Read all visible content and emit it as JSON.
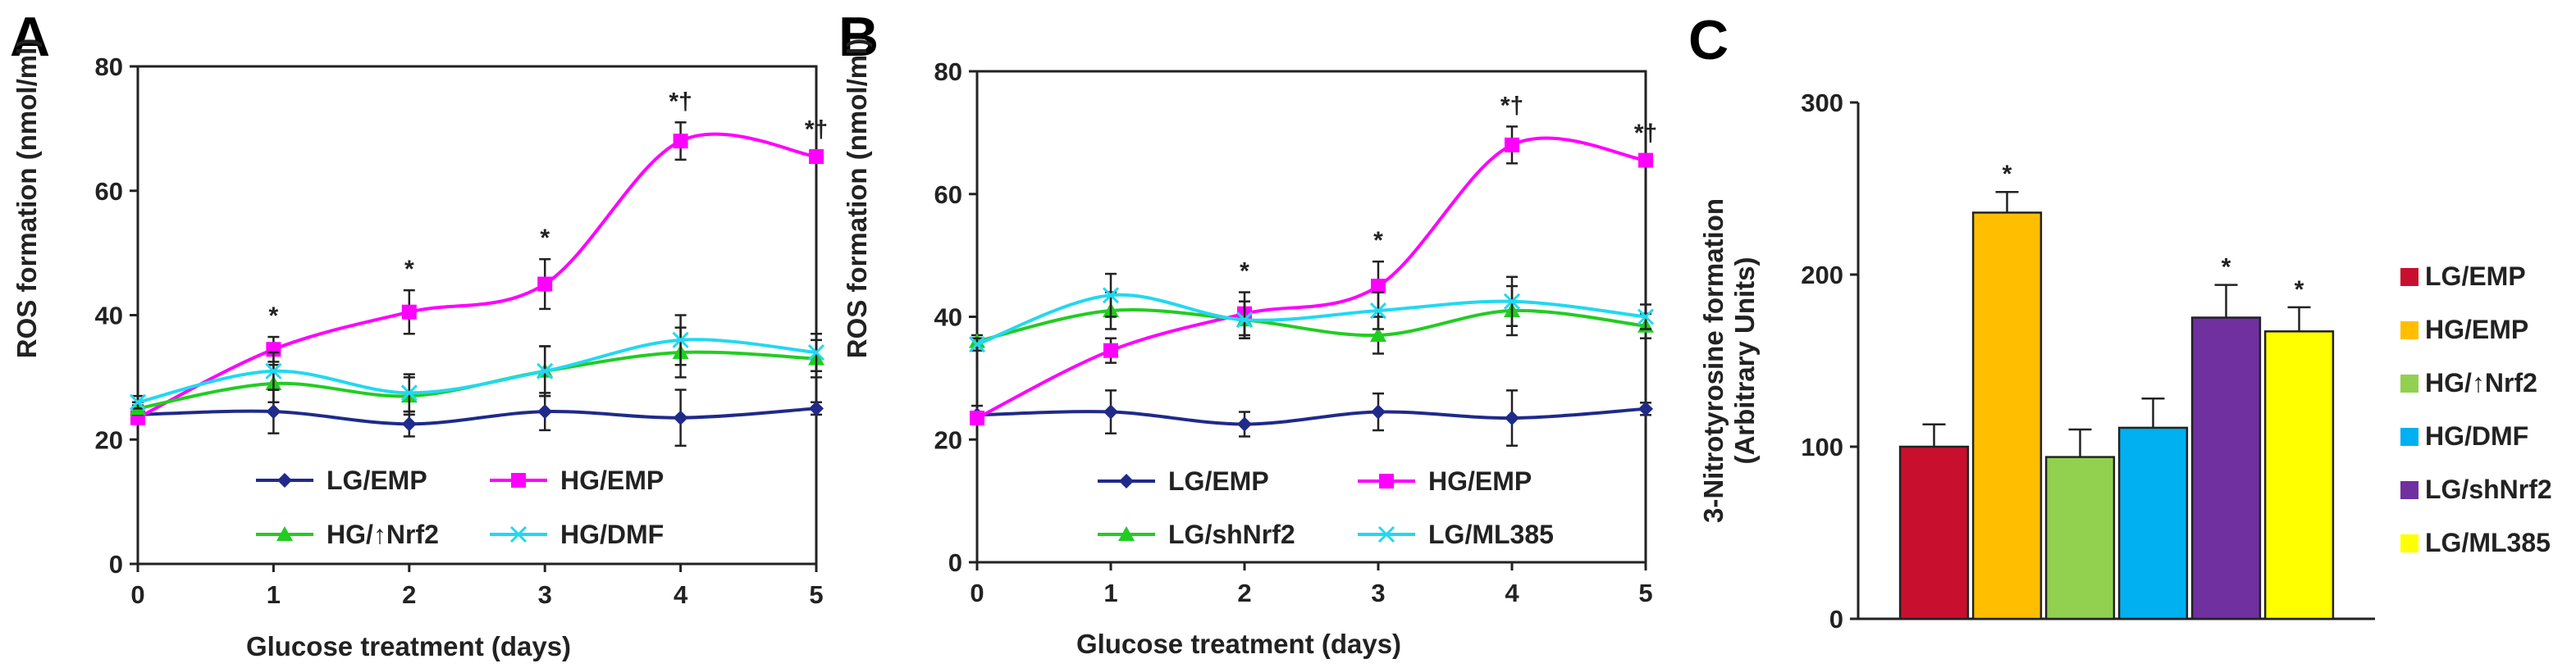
{
  "panels": [
    {
      "id": "A",
      "letter": "A"
    },
    {
      "id": "B",
      "letter": "B"
    },
    {
      "id": "C",
      "letter": "C"
    }
  ],
  "chart_data": [
    {
      "id": "A",
      "type": "line",
      "xlabel": "Glucose treatment (days)",
      "ylabel": "ROS formation (nmol/ml)",
      "x": [
        0,
        1,
        2,
        3,
        4,
        5
      ],
      "xticks": [
        "0",
        "1",
        "2",
        "3",
        "4",
        "5"
      ],
      "yticks": [
        "0",
        "20",
        "40",
        "60",
        "80"
      ],
      "xlim": [
        0,
        5
      ],
      "ylim": [
        0,
        80
      ],
      "legend_position": "bottom",
      "series": [
        {
          "name": "LG/EMP",
          "color": "#1f2a8a",
          "marker": "diamond",
          "values": [
            24,
            24.5,
            22.5,
            24.5,
            23.5,
            25
          ],
          "errors": [
            1.5,
            3.5,
            2,
            3,
            4.5,
            1
          ]
        },
        {
          "name": "HG/EMP",
          "color": "#ff00ff",
          "marker": "square",
          "values": [
            23.5,
            34.5,
            40.5,
            45,
            68,
            65.5
          ],
          "errors": [
            1,
            2,
            3.5,
            4,
            3,
            1
          ]
        },
        {
          "name": "HG/↑Nrf2",
          "color": "#22cc22",
          "marker": "triangle",
          "values": [
            25,
            29,
            27,
            31,
            34,
            33
          ],
          "errors": [
            1,
            3,
            3,
            4,
            4,
            3
          ]
        },
        {
          "name": "HG/DMF",
          "color": "#22d8f0",
          "marker": "x",
          "values": [
            26,
            31,
            27.5,
            31,
            36,
            34
          ],
          "errors": [
            1,
            3,
            3,
            4,
            4,
            3
          ]
        }
      ],
      "annotations": [
        {
          "x": 1,
          "text": "*"
        },
        {
          "x": 2,
          "text": "*"
        },
        {
          "x": 3,
          "text": "*"
        },
        {
          "x": 4,
          "text": "*†"
        },
        {
          "x": 5,
          "text": "*†"
        }
      ]
    },
    {
      "id": "B",
      "type": "line",
      "xlabel": "Glucose treatment (days)",
      "ylabel": "ROS formation (nmol/ml)",
      "x": [
        0,
        1,
        2,
        3,
        4,
        5
      ],
      "xticks": [
        "0",
        "1",
        "2",
        "3",
        "4",
        "5"
      ],
      "yticks": [
        "0",
        "20",
        "40",
        "60",
        "80"
      ],
      "xlim": [
        0,
        5
      ],
      "ylim": [
        0,
        80
      ],
      "legend_position": "bottom",
      "series": [
        {
          "name": "LG/EMP",
          "color": "#1f2a8a",
          "marker": "diamond",
          "values": [
            24,
            24.5,
            22.5,
            24.5,
            23.5,
            25
          ],
          "errors": [
            1.5,
            3.5,
            2,
            3,
            4.5,
            1
          ]
        },
        {
          "name": "HG/EMP",
          "color": "#ff00ff",
          "marker": "square",
          "values": [
            23.5,
            34.5,
            40.5,
            45,
            68,
            65.5
          ],
          "errors": [
            1,
            2,
            3.5,
            4,
            3,
            1
          ]
        },
        {
          "name": "LG/shNrf2",
          "color": "#22cc22",
          "marker": "triangle",
          "values": [
            36,
            41,
            39.5,
            37,
            41,
            38.5
          ],
          "errors": [
            1,
            3,
            3,
            3,
            4,
            2
          ]
        },
        {
          "name": "LG/ML385",
          "color": "#22d8f0",
          "marker": "x",
          "values": [
            35.5,
            43.5,
            39.5,
            41,
            42.5,
            40
          ],
          "errors": [
            1,
            3.5,
            3,
            3,
            4,
            2
          ]
        }
      ],
      "annotations": [
        {
          "x": 2,
          "text": "*"
        },
        {
          "x": 3,
          "text": "*"
        },
        {
          "x": 4,
          "text": "*†"
        },
        {
          "x": 5,
          "text": "*†"
        }
      ]
    },
    {
      "id": "C",
      "type": "bar",
      "ylabel": "3-Nitrotyrosine formation",
      "ylabel2": "(Arbitrary Units)",
      "categories": [
        "LG/EMP",
        "HG/EMP",
        "HG/↑Nrf2",
        "HG/DMF",
        "LG/shNrf2",
        "LG/ML385"
      ],
      "values": [
        100,
        236,
        94,
        111,
        175,
        167
      ],
      "errors": [
        13,
        12,
        16,
        17,
        19,
        14
      ],
      "colors": [
        "#c8102e",
        "#ffbf00",
        "#92d050",
        "#00b0f0",
        "#7030a0",
        "#ffff00"
      ],
      "yticks": [
        "0",
        "100",
        "200",
        "300"
      ],
      "ylim": [
        0,
        300
      ],
      "legend_position": "right",
      "annotations": [
        {
          "index": 1,
          "text": "*"
        },
        {
          "index": 4,
          "text": "*"
        },
        {
          "index": 5,
          "text": "*"
        }
      ]
    }
  ]
}
